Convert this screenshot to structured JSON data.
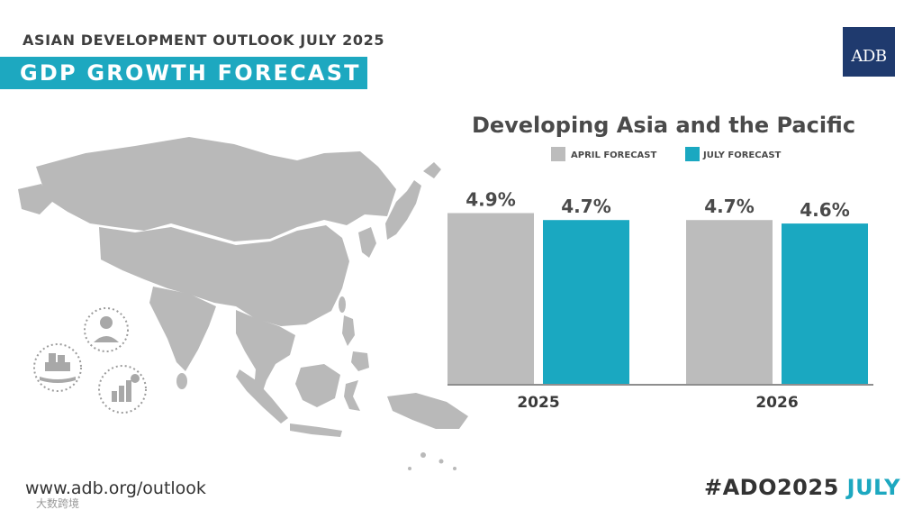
{
  "header": {
    "top_title": "ASIAN DEVELOPMENT OUTLOOK JULY 2025",
    "banner_title": "GDP GROWTH FORECAST",
    "logo_text": "ADB"
  },
  "colors": {
    "accent": "#1da8c0",
    "april": "#bcbcbc",
    "july": "#1aa8c1",
    "logo_bg": "#1f3a6e",
    "map": "#b9b9b9"
  },
  "chart_data": {
    "type": "bar",
    "title": "Developing Asia and the Pacific",
    "categories": [
      "2025",
      "2026"
    ],
    "series": [
      {
        "name": "APRIL FORECAST",
        "values": [
          4.9,
          4.7
        ],
        "labels": [
          "4.9%",
          "4.7%"
        ]
      },
      {
        "name": "JULY FORECAST",
        "values": [
          4.7,
          4.6
        ],
        "labels": [
          "4.7%",
          "4.6%"
        ]
      }
    ],
    "ylim": [
      0,
      5.3
    ],
    "xlabel": "",
    "ylabel": ""
  },
  "footer": {
    "url": "www.adb.org/outlook",
    "hashtag_prefix": "#ADO2025",
    "hashtag_suffix": "JULY",
    "watermark": "大数跨境"
  }
}
